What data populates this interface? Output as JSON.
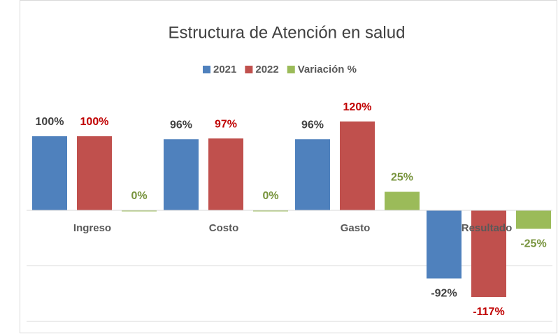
{
  "chart_data": {
    "type": "bar",
    "title": "Estructura de Atención en salud",
    "categories": [
      "Ingreso",
      "Costo",
      "Gasto",
      "Resultado"
    ],
    "series": [
      {
        "name": "2021",
        "color": "#4f81bd",
        "label_color": "#404040",
        "values": [
          100,
          96,
          96,
          -92
        ],
        "value_labels": [
          "100%",
          "96%",
          "96%",
          "-92%"
        ]
      },
      {
        "name": "2022",
        "color": "#c0504d",
        "label_color": "#c00000",
        "values": [
          100,
          97,
          120,
          -117
        ],
        "value_labels": [
          "100%",
          "97%",
          "120%",
          "-117%"
        ]
      },
      {
        "name": "Variación %",
        "color": "#9bbb59",
        "label_color": "#77933c",
        "values": [
          0,
          0,
          25,
          -25
        ],
        "value_labels": [
          "0%",
          "0%",
          "25%",
          "-25%"
        ]
      }
    ],
    "ylim": [
      -150,
      150
    ],
    "yticks": [
      -150,
      -75,
      0
    ],
    "grid": true,
    "legend": "top"
  }
}
